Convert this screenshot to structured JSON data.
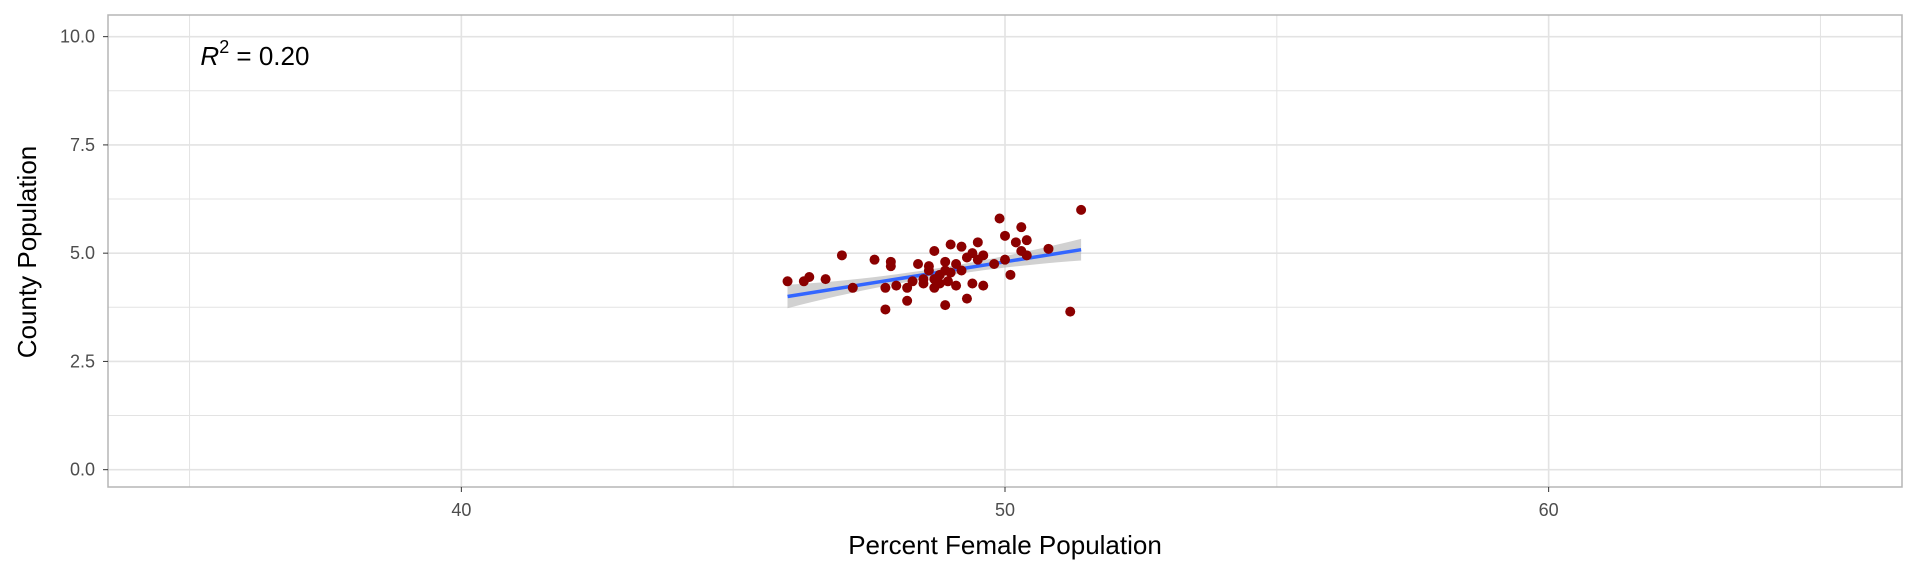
{
  "chart_data": {
    "type": "scatter",
    "title": "",
    "xlabel": "Percent Female Population",
    "ylabel": "County Population",
    "xlim": [
      33.5,
      66.5
    ],
    "ylim": [
      -0.4,
      10.5
    ],
    "x_ticks": [
      40,
      50,
      60
    ],
    "x_tick_labels": [
      "40",
      "50",
      "60"
    ],
    "y_ticks": [
      0,
      2.5,
      5,
      7.5,
      10
    ],
    "y_tick_labels": [
      "0.0",
      "2.5",
      "5.0",
      "7.5",
      "10.0"
    ],
    "grid": true,
    "panel_border": true,
    "annotation": {
      "var": "R",
      "sup": "2",
      "rest": " = 0.20",
      "x": 35.2,
      "y": 9.35
    },
    "points": [
      [
        46.0,
        4.35
      ],
      [
        46.3,
        4.35
      ],
      [
        46.4,
        4.45
      ],
      [
        46.7,
        4.4
      ],
      [
        47.0,
        4.95
      ],
      [
        47.2,
        4.2
      ],
      [
        47.6,
        4.85
      ],
      [
        47.8,
        3.7
      ],
      [
        47.8,
        4.2
      ],
      [
        47.9,
        4.7
      ],
      [
        47.9,
        4.8
      ],
      [
        48.0,
        4.25
      ],
      [
        48.2,
        3.9
      ],
      [
        48.2,
        4.2
      ],
      [
        48.3,
        4.35
      ],
      [
        48.4,
        4.75
      ],
      [
        48.5,
        4.3
      ],
      [
        48.5,
        4.4
      ],
      [
        48.6,
        4.6
      ],
      [
        48.6,
        4.7
      ],
      [
        48.7,
        4.2
      ],
      [
        48.7,
        4.4
      ],
      [
        48.7,
        5.05
      ],
      [
        48.8,
        4.5
      ],
      [
        48.8,
        4.3
      ],
      [
        48.9,
        3.8
      ],
      [
        48.9,
        4.6
      ],
      [
        48.9,
        4.8
      ],
      [
        48.95,
        4.35
      ],
      [
        49.0,
        5.2
      ],
      [
        49.0,
        4.55
      ],
      [
        49.1,
        4.25
      ],
      [
        49.1,
        4.75
      ],
      [
        49.2,
        4.6
      ],
      [
        49.2,
        5.15
      ],
      [
        49.3,
        3.95
      ],
      [
        49.3,
        4.9
      ],
      [
        49.4,
        4.3
      ],
      [
        49.4,
        5.0
      ],
      [
        49.5,
        4.85
      ],
      [
        49.5,
        5.25
      ],
      [
        49.6,
        4.95
      ],
      [
        49.6,
        4.25
      ],
      [
        49.8,
        4.75
      ],
      [
        49.9,
        5.8
      ],
      [
        50.0,
        4.85
      ],
      [
        50.0,
        5.4
      ],
      [
        50.1,
        4.5
      ],
      [
        50.2,
        5.25
      ],
      [
        50.3,
        5.05
      ],
      [
        50.3,
        5.6
      ],
      [
        50.4,
        5.3
      ],
      [
        50.4,
        4.95
      ],
      [
        50.8,
        5.1
      ],
      [
        51.2,
        3.65
      ],
      [
        51.4,
        6.0
      ]
    ],
    "fit": {
      "x_start": 46.0,
      "x_end": 51.4,
      "y_start": 4.0,
      "y_end": 5.08,
      "ci_start": 0.27,
      "ci_mid": 0.1,
      "ci_end": 0.25
    },
    "colors": {
      "points": "#8b0000",
      "fit_line": "#3366ff",
      "ci_band": "#b3b3b3",
      "grid": "#e3e3e3",
      "border": "#b5b5b5"
    }
  }
}
